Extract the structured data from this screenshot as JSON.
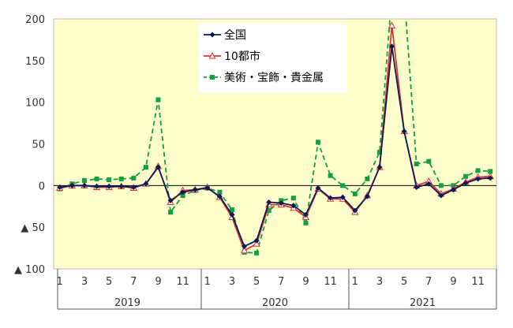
{
  "chart_data": {
    "type": "line",
    "ylim": [
      -100,
      200
    ],
    "y_ticks": [
      {
        "value": 200,
        "label": "200"
      },
      {
        "value": 150,
        "label": "150"
      },
      {
        "value": 100,
        "label": "100"
      },
      {
        "value": 50,
        "label": "50"
      },
      {
        "value": 0,
        "label": "0"
      },
      {
        "value": -50,
        "label": "▲ 50"
      },
      {
        "value": -100,
        "label": "▲ 100"
      }
    ],
    "month_labels": [
      "1",
      "",
      "3",
      "",
      "5",
      "",
      "7",
      "",
      "9",
      "",
      "11",
      "",
      "1",
      "",
      "3",
      "",
      "5",
      "",
      "7",
      "",
      "9",
      "",
      "11",
      "",
      "1",
      "",
      "3",
      "",
      "5",
      "",
      "7",
      "",
      "9",
      "",
      "11",
      ""
    ],
    "years": [
      "2019",
      "2020",
      "2021"
    ],
    "grid": false,
    "legend_position": "top-center",
    "series": [
      {
        "name": "全国",
        "color": "#0a1a5c",
        "marker": "diamond",
        "dash": "solid",
        "values": [
          -2,
          0,
          0,
          -1,
          -1,
          -1,
          -2,
          2,
          22,
          -18,
          -8,
          -5,
          -3,
          -13,
          -35,
          -73,
          -66,
          -20,
          -21,
          -24,
          -35,
          -3,
          -15,
          -14,
          -30,
          -13,
          22,
          167,
          65,
          -2,
          2,
          -12,
          -5,
          3,
          8,
          9
        ]
      },
      {
        "name": "10都市",
        "color": "#e03030",
        "marker": "triangle",
        "dash": "solid",
        "values": [
          -3,
          0,
          0,
          -2,
          -2,
          -1,
          -3,
          2,
          23,
          -20,
          -6,
          -5,
          -2,
          -14,
          -38,
          -78,
          -70,
          -23,
          -23,
          -27,
          -38,
          -4,
          -16,
          -16,
          -32,
          -12,
          22,
          192,
          65,
          0,
          5,
          -10,
          -4,
          4,
          10,
          11
        ]
      },
      {
        "name": "美術・宝飾・貴金属",
        "color": "#10a040",
        "marker": "square",
        "dash": "dashed",
        "values": [
          -4,
          2,
          6,
          8,
          7,
          8,
          9,
          22,
          103,
          -32,
          -12,
          -6,
          -3,
          -8,
          -29,
          -80,
          -81,
          -30,
          -18,
          -15,
          -45,
          52,
          12,
          0,
          -10,
          8,
          40,
          230,
          230,
          26,
          29,
          0,
          0,
          11,
          18,
          17
        ]
      }
    ]
  }
}
